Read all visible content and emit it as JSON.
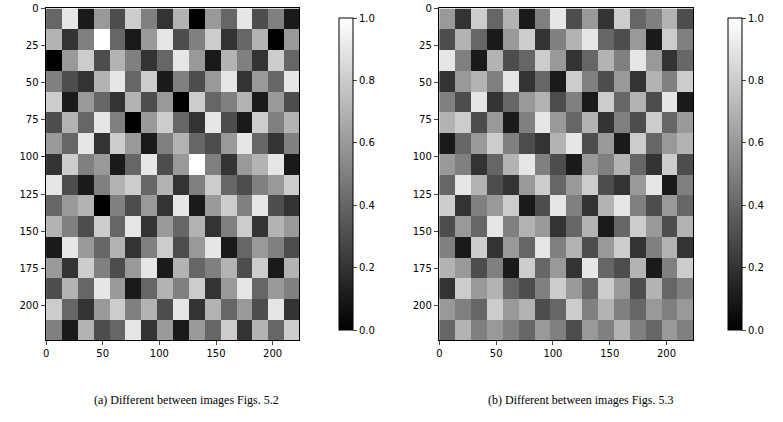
{
  "chart_data": [
    {
      "type": "heatmap",
      "caption": "(a) Different between images Figs. 5.2",
      "x": [
        7,
        21,
        35,
        49,
        63,
        77,
        91,
        105,
        119,
        133,
        147,
        161,
        175,
        189,
        203,
        217
      ],
      "y": [
        7,
        21,
        35,
        49,
        63,
        77,
        91,
        105,
        119,
        133,
        147,
        161,
        175,
        189,
        203,
        217
      ],
      "xlim": [
        -0.5,
        223.5
      ],
      "ylim": [
        223.5,
        -0.5
      ],
      "xticks": [
        0,
        50,
        100,
        150,
        200
      ],
      "yticks": [
        0,
        25,
        50,
        75,
        100,
        125,
        150,
        175,
        200
      ],
      "colorbar_range": [
        0,
        1
      ],
      "colorbar_ticks": [
        {
          "value": 0,
          "label": "0.0"
        },
        0.2,
        0.4,
        0.6,
        0.8,
        {
          "value": 1,
          "label": "1.0"
        }
      ],
      "cells": [
        [
          0.4,
          0.9,
          0.1,
          0.6,
          0.3,
          0.8,
          0.5,
          0.2,
          0.7,
          0.0,
          0.6,
          0.4,
          0.9,
          0.3,
          0.5,
          0.1
        ],
        [
          0.7,
          0.2,
          0.5,
          1.0,
          0.4,
          0.1,
          0.6,
          0.9,
          0.3,
          0.5,
          0.8,
          0.2,
          0.4,
          0.7,
          0.0,
          0.6
        ],
        [
          0.0,
          0.6,
          0.8,
          0.3,
          0.7,
          0.5,
          0.2,
          0.4,
          0.9,
          0.6,
          0.1,
          0.7,
          0.5,
          0.2,
          0.8,
          0.4
        ],
        [
          0.5,
          0.3,
          0.2,
          0.7,
          0.9,
          0.4,
          0.8,
          0.1,
          0.5,
          0.3,
          0.6,
          0.9,
          0.2,
          0.6,
          0.4,
          0.9
        ],
        [
          0.8,
          0.1,
          0.6,
          0.4,
          0.2,
          0.7,
          0.3,
          0.6,
          0.0,
          0.8,
          0.4,
          0.5,
          0.7,
          0.1,
          0.6,
          0.3
        ],
        [
          0.3,
          0.7,
          0.4,
          0.9,
          0.5,
          0.0,
          0.6,
          0.8,
          0.4,
          0.2,
          0.9,
          0.3,
          0.1,
          0.8,
          0.5,
          0.7
        ],
        [
          0.6,
          0.4,
          0.9,
          0.2,
          0.8,
          0.6,
          0.1,
          0.5,
          0.7,
          0.4,
          0.3,
          0.6,
          0.9,
          0.4,
          0.2,
          0.5
        ],
        [
          0.2,
          0.8,
          0.5,
          0.6,
          0.1,
          0.4,
          0.9,
          0.3,
          0.6,
          1.0,
          0.5,
          0.2,
          0.6,
          0.7,
          0.9,
          0.1
        ],
        [
          0.9,
          0.3,
          0.1,
          0.5,
          0.7,
          0.8,
          0.4,
          0.7,
          0.2,
          0.5,
          0.8,
          0.4,
          0.3,
          0.5,
          0.6,
          0.8
        ],
        [
          0.4,
          0.6,
          0.7,
          0.0,
          0.5,
          0.3,
          0.6,
          0.2,
          0.9,
          0.1,
          0.6,
          0.8,
          0.5,
          0.9,
          0.3,
          0.2
        ],
        [
          0.7,
          0.5,
          0.3,
          0.8,
          0.4,
          0.9,
          0.2,
          0.6,
          0.4,
          0.7,
          0.2,
          0.5,
          0.8,
          0.2,
          0.7,
          0.6
        ],
        [
          0.1,
          0.9,
          0.6,
          0.4,
          0.7,
          0.2,
          0.5,
          0.8,
          0.3,
          0.6,
          0.9,
          0.1,
          0.4,
          0.6,
          0.5,
          0.3
        ],
        [
          0.6,
          0.2,
          0.8,
          0.5,
          0.3,
          0.6,
          0.9,
          0.1,
          0.7,
          0.4,
          0.5,
          0.7,
          0.3,
          0.8,
          0.1,
          0.7
        ],
        [
          0.3,
          0.7,
          0.4,
          0.9,
          0.6,
          0.1,
          0.4,
          0.7,
          0.5,
          0.8,
          0.2,
          0.6,
          0.9,
          0.4,
          0.6,
          0.5
        ],
        [
          0.8,
          0.4,
          0.2,
          0.6,
          0.8,
          0.5,
          0.7,
          0.3,
          0.9,
          0.2,
          0.7,
          0.4,
          0.6,
          0.3,
          0.9,
          0.2
        ],
        [
          0.5,
          0.1,
          0.7,
          0.3,
          0.4,
          0.9,
          0.2,
          0.6,
          0.1,
          0.6,
          0.4,
          0.8,
          0.2,
          0.7,
          0.4,
          0.8
        ]
      ]
    },
    {
      "type": "heatmap",
      "caption": "(b) Different between images Figs. 5.3",
      "x": [
        7,
        21,
        35,
        49,
        63,
        77,
        91,
        105,
        119,
        133,
        147,
        161,
        175,
        189,
        203,
        217
      ],
      "y": [
        7,
        21,
        35,
        49,
        63,
        77,
        91,
        105,
        119,
        133,
        147,
        161,
        175,
        189,
        203,
        217
      ],
      "xlim": [
        -0.5,
        223.5
      ],
      "ylim": [
        223.5,
        -0.5
      ],
      "xticks": [
        0,
        50,
        100,
        150,
        200
      ],
      "yticks": [
        0,
        25,
        50,
        75,
        100,
        125,
        150,
        175,
        200
      ],
      "colorbar_range": [
        0,
        1
      ],
      "colorbar_ticks": [
        {
          "value": 0,
          "label": "0.0"
        },
        0.2,
        0.4,
        0.6,
        0.8,
        {
          "value": 1,
          "label": "1.0"
        }
      ],
      "cells": [
        [
          0.6,
          0.2,
          0.8,
          0.4,
          0.7,
          0.1,
          0.5,
          0.9,
          0.3,
          0.6,
          0.2,
          0.8,
          0.4,
          0.5,
          0.7,
          0.3
        ],
        [
          0.3,
          0.7,
          0.4,
          0.1,
          0.6,
          0.8,
          0.2,
          0.5,
          0.7,
          0.9,
          0.4,
          0.3,
          0.6,
          0.1,
          0.8,
          0.5
        ],
        [
          0.9,
          0.5,
          0.1,
          0.7,
          0.3,
          0.4,
          0.8,
          0.6,
          0.2,
          0.4,
          0.7,
          0.5,
          0.9,
          0.6,
          0.2,
          0.4
        ],
        [
          0.2,
          0.6,
          0.7,
          0.5,
          0.9,
          0.2,
          0.4,
          0.1,
          0.8,
          0.5,
          0.3,
          0.6,
          0.2,
          0.7,
          0.5,
          0.8
        ],
        [
          0.5,
          0.3,
          0.9,
          0.2,
          0.4,
          0.6,
          0.7,
          0.3,
          0.5,
          0.1,
          0.8,
          0.4,
          0.7,
          0.3,
          0.9,
          0.1
        ],
        [
          0.7,
          0.8,
          0.3,
          0.6,
          0.1,
          0.5,
          0.9,
          0.6,
          0.4,
          0.7,
          0.2,
          0.5,
          0.3,
          0.8,
          0.4,
          0.6
        ],
        [
          0.1,
          0.4,
          0.6,
          0.8,
          0.5,
          0.3,
          0.2,
          0.7,
          0.9,
          0.3,
          0.6,
          0.1,
          0.8,
          0.4,
          0.6,
          0.7
        ],
        [
          0.6,
          0.5,
          0.2,
          0.4,
          0.7,
          0.9,
          0.5,
          0.3,
          0.1,
          0.6,
          0.5,
          0.7,
          0.4,
          0.2,
          0.8,
          0.3
        ],
        [
          0.4,
          0.9,
          0.7,
          0.3,
          0.2,
          0.6,
          0.8,
          0.4,
          0.6,
          0.8,
          0.3,
          0.2,
          0.6,
          0.9,
          0.1,
          0.5
        ],
        [
          0.8,
          0.2,
          0.5,
          0.6,
          0.8,
          0.1,
          0.3,
          0.9,
          0.5,
          0.2,
          0.7,
          0.9,
          0.5,
          0.3,
          0.6,
          0.4
        ],
        [
          0.3,
          0.6,
          0.4,
          0.9,
          0.5,
          0.7,
          0.6,
          0.2,
          0.4,
          0.7,
          0.1,
          0.4,
          0.8,
          0.6,
          0.3,
          0.7
        ],
        [
          0.5,
          0.1,
          0.8,
          0.2,
          0.6,
          0.4,
          0.9,
          0.5,
          0.7,
          0.3,
          0.6,
          0.8,
          0.2,
          0.5,
          0.7,
          0.2
        ],
        [
          0.7,
          0.6,
          0.3,
          0.5,
          0.1,
          0.8,
          0.4,
          0.6,
          0.2,
          0.9,
          0.4,
          0.3,
          0.7,
          0.1,
          0.5,
          0.8
        ],
        [
          0.2,
          0.8,
          0.6,
          0.7,
          0.4,
          0.3,
          0.5,
          0.8,
          0.6,
          0.4,
          0.8,
          0.6,
          0.3,
          0.7,
          0.4,
          0.5
        ],
        [
          0.6,
          0.5,
          0.4,
          0.8,
          0.6,
          0.7,
          0.3,
          0.4,
          0.8,
          0.5,
          0.7,
          0.5,
          0.4,
          0.6,
          0.5,
          0.6
        ],
        [
          0.4,
          0.7,
          0.5,
          0.6,
          0.5,
          0.4,
          0.6,
          0.5,
          0.3,
          0.6,
          0.5,
          0.7,
          0.5,
          0.4,
          0.6,
          0.5
        ]
      ]
    }
  ]
}
